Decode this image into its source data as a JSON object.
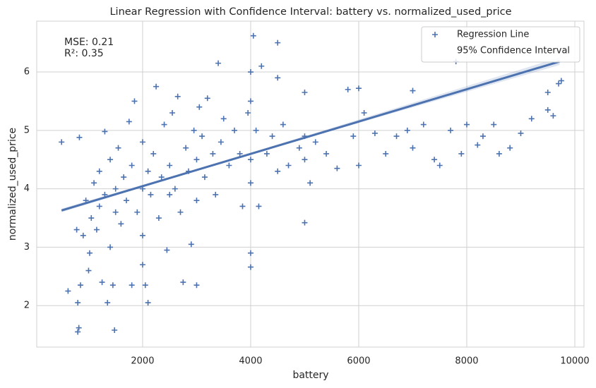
{
  "chart_data": {
    "type": "scatter",
    "title": "Linear Regression with Confidence Interval: battery vs. normalized_used_price",
    "x_label": "battery",
    "y_label": "normalized_used_price",
    "annotations": [
      "MSE: 0.21",
      "R²: 0.35"
    ],
    "xlim": [
      40,
      10170
    ],
    "ylim": [
      1.29,
      6.87
    ],
    "xticks": [
      2000,
      4000,
      6000,
      8000,
      10000
    ],
    "yticks": [
      2,
      3,
      4,
      5,
      6
    ],
    "grid": true,
    "legend": "upper right",
    "series": [
      {
        "name": "Regression Line",
        "color": "#4c72b0",
        "marker": "+",
        "x": [
          500,
          620,
          780,
          800,
          800,
          820,
          830,
          850,
          900,
          950,
          1000,
          1020,
          1050,
          1100,
          1150,
          1200,
          1200,
          1250,
          1300,
          1300,
          1350,
          1400,
          1400,
          1450,
          1480,
          1500,
          1500,
          1550,
          1600,
          1650,
          1700,
          1750,
          1800,
          1800,
          1850,
          1900,
          2000,
          2000,
          2000,
          2000,
          2050,
          2100,
          2100,
          2150,
          2200,
          2250,
          2300,
          2350,
          2400,
          2450,
          2500,
          2500,
          2550,
          2600,
          2650,
          2700,
          2750,
          2800,
          2850,
          2900,
          2950,
          3000,
          3000,
          3000,
          3050,
          3100,
          3150,
          3200,
          3300,
          3350,
          3400,
          3450,
          3500,
          3600,
          3700,
          3800,
          3850,
          3950,
          4000,
          4000,
          4000,
          4000,
          4000,
          4000,
          4050,
          4100,
          4150,
          4200,
          4300,
          4400,
          4500,
          4500,
          4500,
          4600,
          4700,
          4900,
          5000,
          5000,
          5000,
          5000,
          5100,
          5200,
          5400,
          5600,
          5800,
          5900,
          6000,
          6000,
          6100,
          6300,
          6500,
          6700,
          6900,
          7000,
          7000,
          7200,
          7400,
          7500,
          7700,
          7800,
          7900,
          8000,
          8200,
          8300,
          8500,
          8600,
          8800,
          9000,
          9200,
          9500,
          9500,
          9600,
          9750,
          9700
        ],
        "values": [
          4.8,
          2.25,
          3.3,
          2.05,
          1.55,
          1.62,
          4.88,
          2.35,
          3.2,
          3.8,
          2.6,
          2.9,
          3.5,
          4.1,
          3.3,
          4.3,
          3.7,
          2.4,
          3.9,
          4.98,
          2.05,
          3.0,
          4.5,
          2.35,
          1.58,
          3.6,
          4.0,
          4.7,
          3.4,
          4.2,
          3.8,
          5.15,
          2.35,
          4.4,
          5.5,
          3.6,
          4.0,
          3.2,
          2.7,
          4.8,
          2.35,
          2.05,
          4.3,
          3.9,
          4.6,
          5.75,
          3.5,
          4.2,
          5.1,
          2.95,
          4.4,
          3.9,
          5.3,
          4.0,
          5.58,
          3.6,
          2.4,
          4.7,
          4.3,
          3.05,
          5.0,
          4.5,
          3.8,
          2.35,
          5.4,
          4.9,
          4.2,
          5.55,
          4.6,
          3.9,
          6.15,
          4.8,
          5.2,
          4.4,
          5.0,
          4.6,
          3.7,
          5.3,
          6.0,
          4.5,
          5.5,
          2.9,
          2.66,
          4.1,
          6.62,
          5.0,
          3.7,
          6.1,
          4.6,
          4.9,
          6.5,
          5.9,
          4.3,
          5.1,
          4.4,
          4.7,
          5.65,
          4.5,
          3.42,
          4.9,
          4.1,
          4.8,
          4.6,
          4.35,
          5.7,
          4.9,
          5.72,
          4.4,
          5.3,
          4.95,
          4.6,
          4.9,
          5.0,
          5.68,
          4.7,
          5.1,
          4.5,
          4.4,
          5.0,
          6.18,
          4.6,
          5.1,
          4.75,
          4.9,
          5.1,
          4.6,
          4.7,
          4.95,
          5.2,
          5.65,
          5.35,
          5.25,
          5.85,
          5.8
        ]
      },
      {
        "name": "95% Confidence Interval",
        "color": "#4c72b0",
        "x": [
          500,
          3000,
          5000,
          9720
        ],
        "lower": [
          3.6,
          4.31,
          4.86,
          6.12
        ],
        "upper": [
          3.66,
          4.34,
          4.9,
          6.25
        ]
      }
    ],
    "regression": {
      "color": "#4c72b0",
      "x": [
        500,
        9720
      ],
      "y": [
        3.63,
        6.18
      ]
    }
  }
}
